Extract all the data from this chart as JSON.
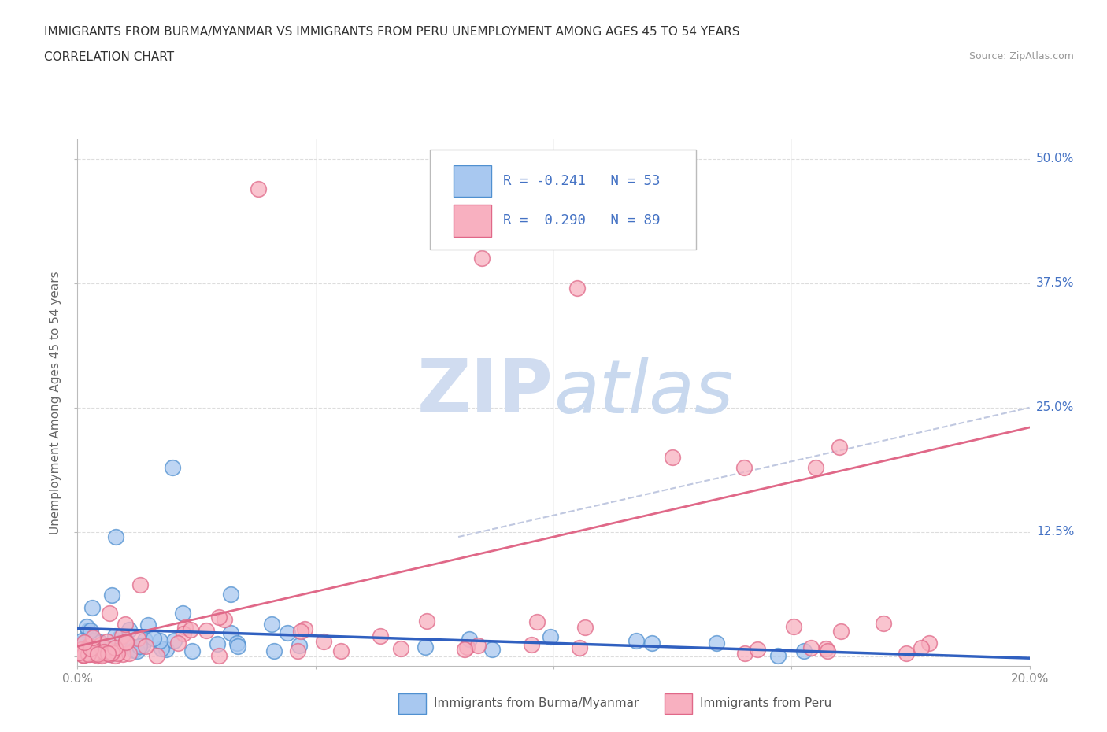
{
  "title_line1": "IMMIGRANTS FROM BURMA/MYANMAR VS IMMIGRANTS FROM PERU UNEMPLOYMENT AMONG AGES 45 TO 54 YEARS",
  "title_line2": "CORRELATION CHART",
  "source_text": "Source: ZipAtlas.com",
  "ylabel": "Unemployment Among Ages 45 to 54 years",
  "xlim": [
    0.0,
    0.2
  ],
  "ylim": [
    -0.01,
    0.52
  ],
  "ytick_vals": [
    0.0,
    0.125,
    0.25,
    0.375,
    0.5
  ],
  "ytick_labels": [
    "",
    "12.5%",
    "25.0%",
    "37.5%",
    "50.0%"
  ],
  "xtick_vals": [
    0.0,
    0.05,
    0.1,
    0.15,
    0.2
  ],
  "xtick_labels": [
    "0.0%",
    "",
    "",
    "",
    "20.0%"
  ],
  "blue_fill": "#A8C8F0",
  "blue_edge": "#5090D0",
  "pink_fill": "#F8B0C0",
  "pink_edge": "#E06888",
  "blue_line_color": "#3060C0",
  "pink_line_color": "#E06888",
  "dashed_line_color": "#C0C8E0",
  "watermark_color": "#D0DCF0",
  "grid_color": "#DDDDDD",
  "bg_color": "#FFFFFF",
  "tick_label_color_y": "#4472C4",
  "tick_label_color_x": "#888888",
  "title_color": "#333333",
  "ylabel_color": "#666666",
  "legend_text_color": "#4472C4",
  "bottom_legend_text_color": "#555555",
  "source_color": "#999999"
}
